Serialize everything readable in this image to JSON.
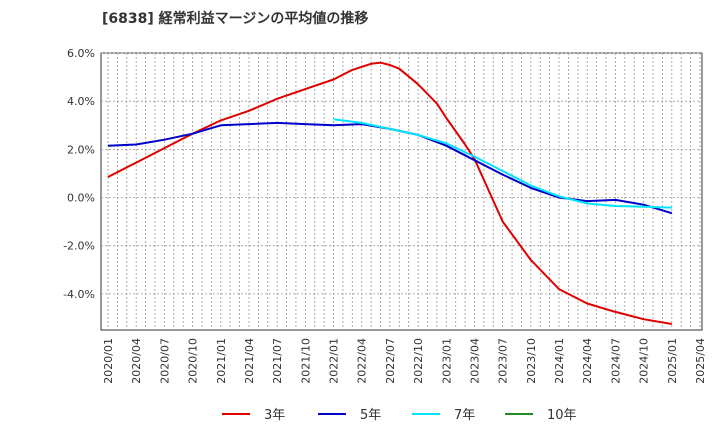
{
  "chart_data": {
    "type": "line",
    "title": "[6838]  経常利益マージンの平均値の推移",
    "xlabel": "",
    "ylabel": "",
    "x_ticks": [
      "2020/01",
      "2020/04",
      "2020/07",
      "2020/10",
      "2021/01",
      "2021/04",
      "2021/07",
      "2021/10",
      "2022/01",
      "2022/04",
      "2022/07",
      "2022/10",
      "2023/01",
      "2023/04",
      "2023/07",
      "2023/10",
      "2024/01",
      "2024/04",
      "2024/07",
      "2024/10",
      "2025/01",
      "2025/04"
    ],
    "y_ticks": [
      "6.0%",
      "4.0%",
      "2.0%",
      "0.0%",
      "-2.0%",
      "-4.0%"
    ],
    "y_tick_values": [
      6,
      4,
      2,
      0,
      -2,
      -4
    ],
    "ylim": [
      -5.5,
      6.0
    ],
    "grid": true,
    "legend_position": "bottom",
    "series": [
      {
        "name": "3年",
        "color": "#e00000",
        "x": [
          "2020/01",
          "2020/04",
          "2020/07",
          "2020/10",
          "2021/01",
          "2021/04",
          "2021/07",
          "2021/10",
          "2022/01",
          "2022/03",
          "2022/05",
          "2022/06",
          "2022/07",
          "2022/08",
          "2022/10",
          "2022/12",
          "2023/01",
          "2023/03",
          "2023/04",
          "2023/07",
          "2023/10",
          "2024/01",
          "2024/04",
          "2024/07",
          "2024/10",
          "2025/01"
        ],
        "values": [
          0.85,
          1.45,
          2.05,
          2.65,
          3.2,
          3.6,
          4.1,
          4.5,
          4.9,
          5.3,
          5.55,
          5.6,
          5.5,
          5.35,
          4.7,
          3.9,
          3.3,
          2.2,
          1.6,
          -1.0,
          -2.6,
          -3.8,
          -4.4,
          -4.75,
          -5.05,
          -5.25
        ]
      },
      {
        "name": "5年",
        "color": "#0000cc",
        "x": [
          "2020/01",
          "2020/04",
          "2020/07",
          "2020/10",
          "2021/01",
          "2021/04",
          "2021/07",
          "2021/10",
          "2022/01",
          "2022/04",
          "2022/07",
          "2022/10",
          "2023/01",
          "2023/04",
          "2023/07",
          "2023/10",
          "2024/01",
          "2024/04",
          "2024/07",
          "2024/10",
          "2025/01"
        ],
        "values": [
          2.15,
          2.2,
          2.4,
          2.65,
          3.0,
          3.05,
          3.1,
          3.05,
          3.0,
          3.05,
          2.85,
          2.6,
          2.15,
          1.55,
          0.95,
          0.4,
          0.0,
          -0.15,
          -0.1,
          -0.3,
          -0.65
        ]
      },
      {
        "name": "7年",
        "color": "#00e5ff",
        "x": [
          "2022/01",
          "2022/04",
          "2022/07",
          "2022/10",
          "2023/01",
          "2023/04",
          "2023/07",
          "2023/10",
          "2024/01",
          "2024/04",
          "2024/07",
          "2024/10",
          "2025/01"
        ],
        "values": [
          3.25,
          3.1,
          2.85,
          2.6,
          2.25,
          1.7,
          1.1,
          0.5,
          0.05,
          -0.25,
          -0.35,
          -0.38,
          -0.42
        ]
      },
      {
        "name": "10年",
        "color": "#228b22",
        "x": [],
        "values": []
      }
    ]
  }
}
